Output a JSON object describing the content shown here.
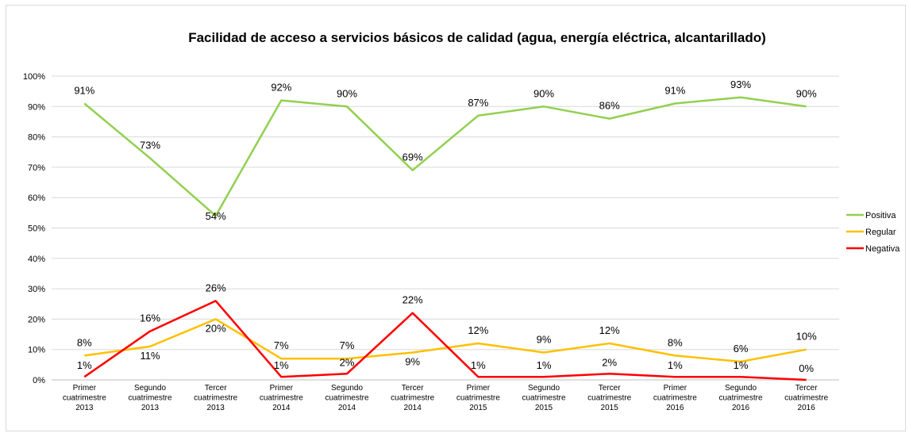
{
  "chart_data": {
    "type": "line",
    "title": "Facilidad de acceso a servicios básicos de calidad (agua, energía eléctrica, alcantarillado)",
    "xlabel": "",
    "ylabel": "",
    "ylim": [
      0,
      100
    ],
    "y_ticks": [
      "0%",
      "10%",
      "20%",
      "30%",
      "40%",
      "50%",
      "60%",
      "70%",
      "80%",
      "90%",
      "100%"
    ],
    "grid": true,
    "legend_position": "right",
    "categories": [
      [
        "Primer",
        "cuatrimestre",
        "2013"
      ],
      [
        "Segundo",
        "cuatrimestre",
        "2013"
      ],
      [
        "Tercer",
        "cuatrimestre",
        "2013"
      ],
      [
        "Primer",
        "cuatrimestre",
        "2014"
      ],
      [
        "Segundo",
        "cuatrimestre",
        "2014"
      ],
      [
        "Tercer",
        "cuatrimestre",
        "2014"
      ],
      [
        "Primer",
        "cuatrimestre",
        "2015"
      ],
      [
        "Segundo",
        "cuatrimestre",
        "2015"
      ],
      [
        "Tercer",
        "cuatrimestre",
        "2015"
      ],
      [
        "Primer",
        "cuatrimestre",
        "2016"
      ],
      [
        "Segundo",
        "cuatrimestre",
        "2016"
      ],
      [
        "Tercer",
        "cuatrimestre",
        "2016"
      ]
    ],
    "series": [
      {
        "name": "Positiva",
        "color": "#92d050",
        "values": [
          91,
          73,
          54,
          92,
          90,
          69,
          87,
          90,
          86,
          91,
          93,
          90
        ],
        "labels": [
          "91%",
          "73%",
          "54%",
          "92%",
          "90%",
          "69%",
          "87%",
          "90%",
          "86%",
          "91%",
          "93%",
          "90%"
        ]
      },
      {
        "name": "Regular",
        "color": "#ffc000",
        "values": [
          8,
          11,
          20,
          7,
          7,
          9,
          12,
          9,
          12,
          8,
          6,
          10
        ],
        "labels": [
          "8%",
          "11%",
          "20%",
          "7%",
          "7%",
          "9%",
          "12%",
          "9%",
          "12%",
          "8%",
          "6%",
          "10%"
        ]
      },
      {
        "name": "Negativa",
        "color": "#ff0000",
        "values": [
          1,
          16,
          26,
          1,
          2,
          22,
          1,
          1,
          2,
          1,
          1,
          0
        ],
        "labels": [
          "1%",
          "16%",
          "26%",
          "1%",
          "2%",
          "22%",
          "1%",
          "1%",
          "2%",
          "1%",
          "1%",
          "0%"
        ]
      }
    ]
  }
}
